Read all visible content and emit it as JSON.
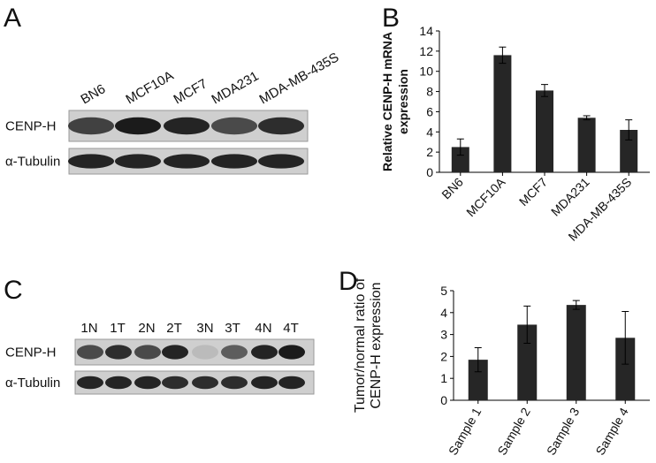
{
  "panels": {
    "labels": [
      "A",
      "B",
      "C",
      "D"
    ]
  },
  "blot_a": {
    "lanes": [
      "BN6",
      "MCF10A",
      "MCF7",
      "MDA231",
      "MDA-MB-435S"
    ],
    "rows": [
      "CENP-H",
      "α-Tubulin"
    ]
  },
  "blot_c": {
    "lanes": [
      "1N",
      "1T",
      "2N",
      "2T",
      "3N",
      "3T",
      "4N",
      "4T"
    ],
    "rows": [
      "CENP-H",
      "α-Tubulin"
    ]
  },
  "chart_data": [
    {
      "type": "bar",
      "ylabel": [
        "Relative CENP-H mRNA",
        "expression"
      ],
      "categories": [
        "BN6",
        "MCF10A",
        "MCF7",
        "MDA231",
        "MDA-MB-435S"
      ],
      "values": [
        2.5,
        11.6,
        8.1,
        5.4,
        4.2
      ],
      "errors": [
        0.8,
        0.8,
        0.6,
        0.2,
        1.0
      ],
      "color": "#262626",
      "ylim": [
        0,
        14
      ],
      "yticks": [
        0,
        2,
        4,
        6,
        8,
        10,
        12,
        14
      ]
    },
    {
      "type": "bar",
      "ylabel": [
        "Tumor/normal ratio of",
        "CENP-H expression"
      ],
      "categories": [
        "Sample 1",
        "Sample 2",
        "Sample 3",
        "Sample 4"
      ],
      "values": [
        1.85,
        3.45,
        4.35,
        2.85
      ],
      "errors": [
        0.55,
        0.85,
        0.2,
        1.2
      ],
      "color": "#262626",
      "ylim": [
        0,
        5
      ],
      "yticks": [
        0,
        1,
        2,
        3,
        4,
        5
      ]
    }
  ]
}
